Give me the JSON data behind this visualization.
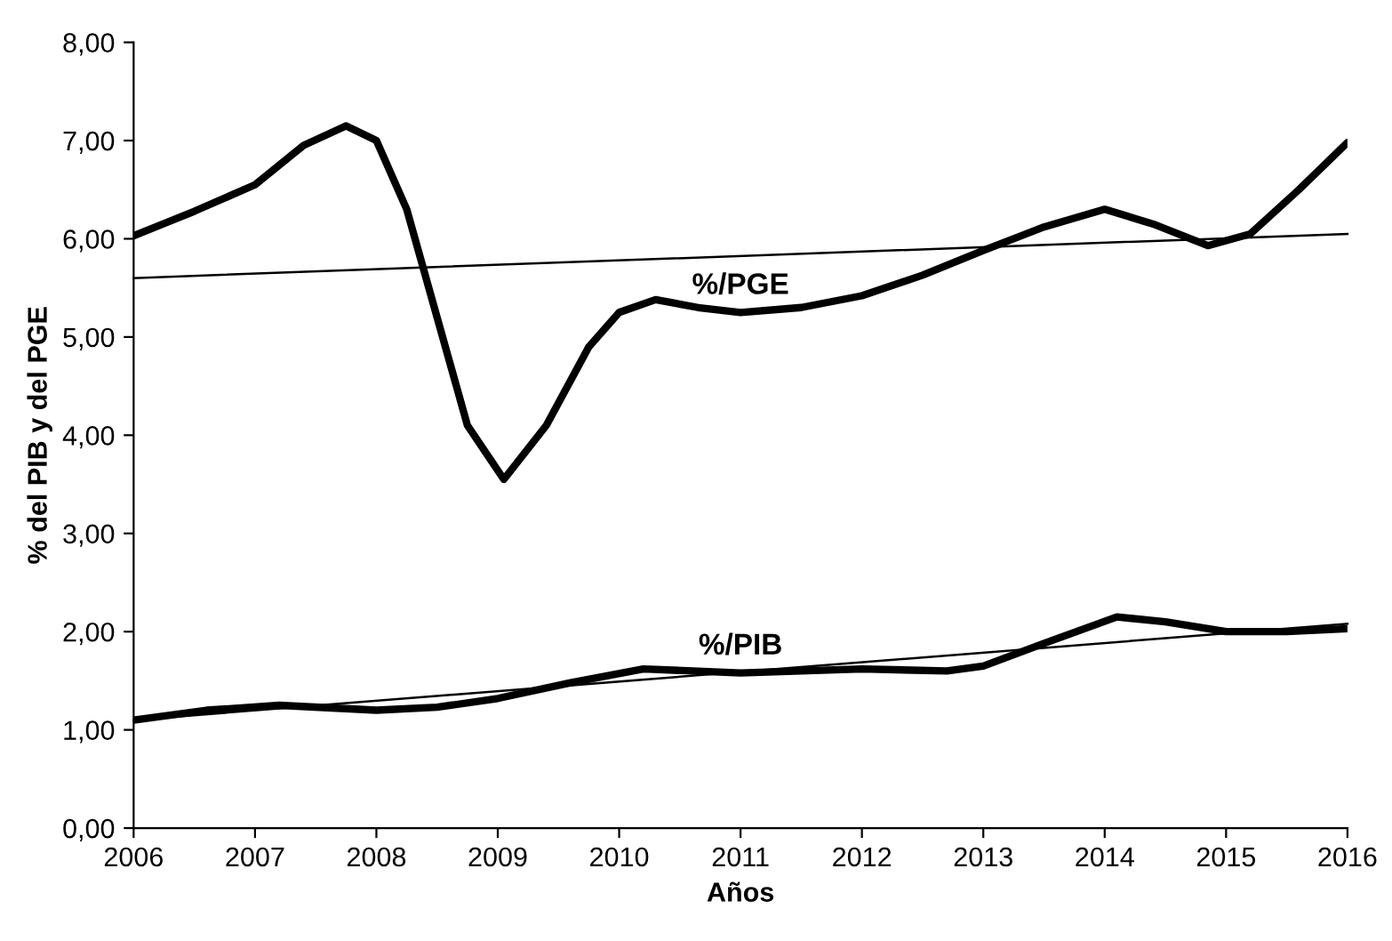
{
  "chart_data": {
    "type": "line",
    "xlabel": "Años",
    "ylabel": "% del PIB y del PGE",
    "series": [
      {
        "name": "%/PGE",
        "color": "#000000",
        "x": [
          2006,
          2006.5,
          2007,
          2007.4,
          2007.75,
          2008,
          2008.25,
          2008.5,
          2008.75,
          2009.05,
          2009.4,
          2009.75,
          2010,
          2010.3,
          2010.65,
          2011,
          2011.5,
          2012,
          2012.5,
          2013,
          2013.5,
          2014,
          2014.4,
          2014.85,
          2015.2,
          2015.6,
          2016
        ],
        "values": [
          6.03,
          6.28,
          6.55,
          6.95,
          7.15,
          7.0,
          6.3,
          5.2,
          4.1,
          3.55,
          4.1,
          4.9,
          5.25,
          5.38,
          5.3,
          5.25,
          5.3,
          5.42,
          5.63,
          5.88,
          6.12,
          6.3,
          6.15,
          5.93,
          6.05,
          6.5,
          6.98
        ]
      },
      {
        "name": "%/PIB",
        "color": "#000000",
        "x": [
          2006,
          2006.6,
          2007.2,
          2008,
          2008.5,
          2009,
          2009.6,
          2010.2,
          2011,
          2012,
          2012.7,
          2013,
          2013.5,
          2014.1,
          2014.5,
          2015,
          2015.5,
          2016
        ],
        "values": [
          1.1,
          1.2,
          1.25,
          1.2,
          1.23,
          1.32,
          1.48,
          1.62,
          1.58,
          1.62,
          1.6,
          1.65,
          1.88,
          2.15,
          2.1,
          2.0,
          2.0,
          2.03
        ]
      },
      {
        "color": "#000000",
        "x": [
          2006,
          2016
        ],
        "values": [
          5.6,
          6.05
        ]
      },
      {
        "color": "#000000",
        "x": [
          2006,
          2016
        ],
        "values": [
          1.1,
          2.08
        ]
      }
    ],
    "xlim": [
      2006,
      2016
    ],
    "xticks": [
      2006,
      2007,
      2008,
      2009,
      2010,
      2011,
      2012,
      2013,
      2014,
      2015,
      2016
    ],
    "ylim": [
      0,
      8
    ],
    "yticks": [
      {
        "value": 0,
        "label": "0,00"
      },
      {
        "value": 1,
        "label": "1,00"
      },
      {
        "value": 2,
        "label": "2,00"
      },
      {
        "value": 3,
        "label": "3,00"
      },
      {
        "value": 4,
        "label": "4,00"
      },
      {
        "value": 5,
        "label": "5,00"
      },
      {
        "value": 6,
        "label": "6,00"
      },
      {
        "value": 7,
        "label": "7,00"
      },
      {
        "value": 8,
        "label": "8,00"
      }
    ],
    "grid": false,
    "legend": false,
    "marker": "none",
    "line_style": "solid"
  }
}
